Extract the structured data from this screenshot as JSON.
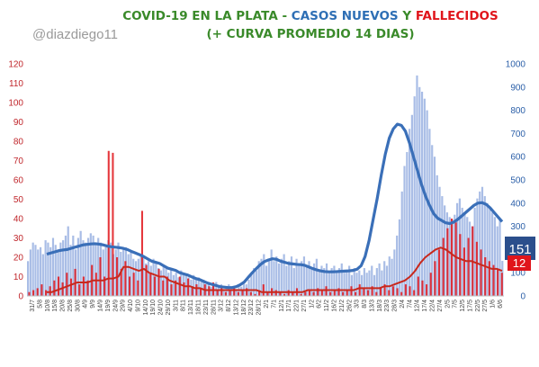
{
  "title": {
    "line1_a": "COVID-19 EN LA PLATA - ",
    "line1_b": "CASOS NUEVOS",
    "line1_c": " Y ",
    "line1_d": "FALLECIDOS",
    "line2": "(+ CURVA PROMEDIO 14 DIAS)"
  },
  "handle": "@diazdiego11",
  "colors": {
    "title_green": "#3a8a2a",
    "cases_title": "#2e6fb5",
    "deaths": "#e0151b",
    "cases_bars": "#a9bde6",
    "cases_curve": "#3a6fb8",
    "deaths_curve": "#c8281c",
    "left_axis": "#c0262b",
    "right_axis": "#2b5fa8"
  },
  "latest": {
    "cases": "151",
    "deaths": "12"
  },
  "chart_data": {
    "type": "bar",
    "title": "COVID-19 EN LA PLATA - CASOS NUEVOS Y FALLECIDOS (+ CURVA PROMEDIO 14 DIAS)",
    "left_axis": {
      "ticks": [
        0,
        10,
        20,
        30,
        40,
        50,
        60,
        70,
        80,
        90,
        100,
        110,
        120
      ],
      "ylim": [
        0,
        120
      ],
      "series": "FALLECIDOS"
    },
    "right_axis": {
      "ticks": [
        0,
        100,
        200,
        300,
        400,
        500,
        600,
        700,
        800,
        900,
        1000
      ],
      "ylim": [
        0,
        1000
      ],
      "series": "CASOS NUEVOS"
    },
    "x_tick_labels": [
      "31/7",
      "5/8",
      "10/8",
      "15/8",
      "20/8",
      "25/8",
      "30/8",
      "4/9",
      "9/9",
      "14/9",
      "19/9",
      "24/9",
      "29/9",
      "4/10",
      "9/10",
      "14/10",
      "19/10",
      "24/10",
      "29/10",
      "3/11",
      "8/11",
      "13/11",
      "18/11",
      "23/11",
      "28/11",
      "3/12",
      "8/12",
      "13/12",
      "18/12",
      "23/12",
      "28/12",
      "2/1",
      "7/1",
      "12/1",
      "17/1",
      "22/1",
      "27/1",
      "1/2",
      "6/2",
      "11/2",
      "16/2",
      "21/2",
      "26/2",
      "3/3",
      "8/3",
      "13/3",
      "18/3",
      "23/3",
      "28/3",
      "2/4",
      "7/4",
      "12/4",
      "17/4",
      "22/4",
      "27/4",
      "2/5",
      "7/5",
      "12/5",
      "17/5",
      "22/5",
      "27/5",
      "1/6",
      "6/6"
    ],
    "cases_daily_approx": [
      150,
      200,
      230,
      220,
      200,
      210,
      180,
      240,
      230,
      210,
      250,
      220,
      200,
      230,
      240,
      260,
      300,
      220,
      260,
      200,
      250,
      280,
      240,
      230,
      250,
      270,
      260,
      220,
      250,
      230,
      200,
      210,
      240,
      230,
      180,
      200,
      230,
      190,
      200,
      210,
      180,
      190,
      160,
      150,
      160,
      180,
      170,
      140,
      150,
      130,
      160,
      140,
      120,
      110,
      130,
      120,
      100,
      110,
      90,
      100,
      80,
      110,
      100,
      90,
      80,
      70,
      90,
      70,
      80,
      60,
      70,
      50,
      60,
      40,
      50,
      60,
      40,
      50,
      30,
      40,
      50,
      30,
      40,
      30,
      50,
      40,
      60,
      50,
      70,
      90,
      120,
      110,
      150,
      160,
      180,
      130,
      160,
      200,
      150,
      170,
      140,
      160,
      180,
      130,
      150,
      170,
      120,
      160,
      140,
      150,
      170,
      130,
      150,
      120,
      140,
      160,
      110,
      130,
      120,
      140,
      100,
      120,
      130,
      110,
      120,
      140,
      100,
      110,
      130,
      90,
      120,
      100,
      110,
      90,
      120,
      100,
      110,
      130,
      90,
      120,
      140,
      110,
      150,
      130,
      170,
      160,
      200,
      260,
      330,
      450,
      560,
      620,
      720,
      780,
      860,
      950,
      900,
      880,
      850,
      800,
      720,
      650,
      600,
      520,
      470,
      430,
      390,
      360,
      340,
      330,
      350,
      400,
      420,
      380,
      360,
      340,
      320,
      300,
      380,
      420,
      450,
      470,
      430,
      400,
      380,
      360,
      340,
      300,
      330,
      151
    ],
    "cases_avg14_approx": [
      180,
      185,
      190,
      195,
      198,
      200,
      205,
      210,
      215,
      220,
      222,
      224,
      225,
      223,
      220,
      215,
      212,
      210,
      208,
      205,
      200,
      192,
      185,
      178,
      170,
      160,
      150,
      145,
      140,
      130,
      120,
      115,
      110,
      100,
      95,
      90,
      82,
      75,
      70,
      62,
      55,
      50,
      45,
      40,
      38,
      36,
      36,
      40,
      48,
      60,
      80,
      100,
      118,
      135,
      148,
      155,
      160,
      158,
      150,
      145,
      140,
      138,
      136,
      135,
      132,
      125,
      118,
      112,
      108,
      105,
      104,
      104,
      105,
      106,
      107,
      108,
      110,
      115,
      130,
      170,
      240,
      330,
      420,
      520,
      610,
      680,
      720,
      740,
      735,
      710,
      660,
      600,
      540,
      480,
      430,
      390,
      355,
      335,
      325,
      315,
      312,
      318,
      330,
      345,
      360,
      375,
      390,
      400,
      402,
      395,
      380,
      360,
      340,
      320
    ],
    "deaths_daily_approx": [
      2,
      3,
      4,
      6,
      3,
      5,
      8,
      10,
      7,
      12,
      9,
      14,
      6,
      10,
      8,
      16,
      12,
      20,
      10,
      75,
      74,
      20,
      14,
      18,
      10,
      12,
      8,
      44,
      16,
      12,
      10,
      14,
      8,
      10,
      6,
      8,
      10,
      7,
      9,
      5,
      6,
      4,
      6,
      5,
      7,
      3,
      4,
      2,
      3,
      5,
      2,
      3,
      4,
      2,
      1,
      3,
      6,
      2,
      4,
      3,
      2,
      1,
      3,
      2,
      4,
      1,
      2,
      3,
      2,
      4,
      3,
      5,
      2,
      3,
      4,
      2,
      3,
      5,
      2,
      6,
      4,
      3,
      5,
      2,
      4,
      6,
      3,
      5,
      4,
      2,
      6,
      5,
      3,
      10,
      8,
      6,
      12,
      18,
      24,
      30,
      35,
      40,
      38,
      32,
      25,
      30,
      36,
      28,
      24,
      20,
      18,
      16,
      14,
      12
    ],
    "deaths_avg14_approx": [
      2,
      2,
      3,
      4,
      5,
      6,
      7,
      7,
      7,
      8,
      8,
      8,
      9,
      9,
      10,
      15,
      15,
      14,
      13,
      14,
      12,
      11,
      10,
      10,
      8,
      7,
      6,
      5,
      5,
      4,
      4,
      3,
      3,
      3,
      3,
      3,
      3,
      3,
      3,
      3,
      3,
      3,
      2,
      2,
      2,
      2,
      2,
      2,
      2,
      2,
      2,
      3,
      3,
      3,
      3,
      3,
      3,
      3,
      3,
      3,
      3,
      4,
      4,
      4,
      4,
      4,
      5,
      5,
      6,
      7,
      8,
      10,
      13,
      17,
      20,
      22,
      24,
      25,
      24,
      22,
      20,
      19,
      18,
      18,
      17,
      16,
      15,
      14,
      14,
      13
    ]
  }
}
